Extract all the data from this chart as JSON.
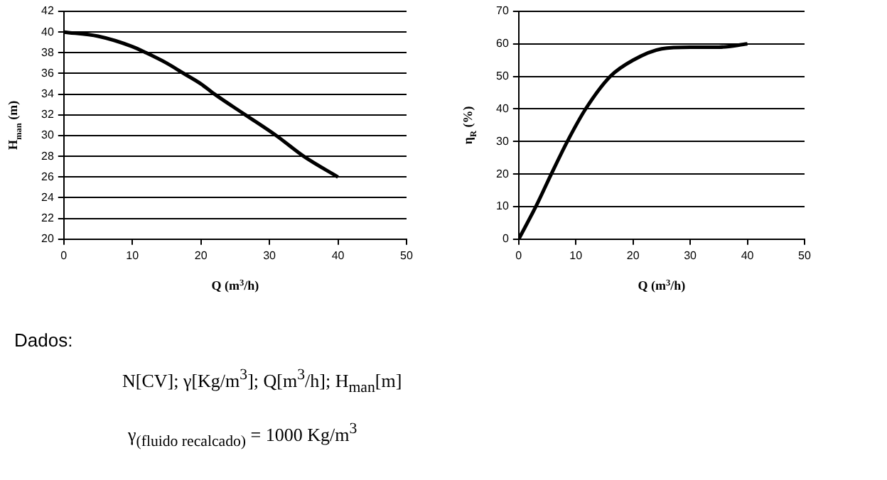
{
  "chart_data": [
    {
      "type": "line",
      "xlabel": "Q (m$^{3}$/h)",
      "ylabel": "H$_{man}$ (m)",
      "x": [
        0,
        5,
        10,
        12,
        15,
        17.5,
        20,
        22,
        26.5,
        31,
        35,
        40
      ],
      "series": [
        {
          "color": "#000000",
          "values": [
            40,
            39.6,
            38.6,
            38,
            37,
            36,
            35,
            34,
            32,
            30,
            28,
            26
          ]
        }
      ],
      "xlim": [
        0,
        50
      ],
      "xticks": [
        0,
        10,
        20,
        30,
        40,
        50
      ],
      "ylim": [
        20,
        42
      ],
      "yticks": [
        20,
        22,
        24,
        26,
        28,
        30,
        32,
        34,
        36,
        38,
        40,
        42
      ],
      "grid": "y",
      "legend": false,
      "marker": "none",
      "line_style": "solid"
    },
    {
      "type": "line",
      "xlabel": "Q (m$^{3}$/h)",
      "ylabel": "η$_{R}$ (%)",
      "x": [
        0,
        3,
        5.7,
        8.5,
        11.7,
        16,
        20,
        25,
        30,
        35,
        40
      ],
      "series": [
        {
          "color": "#000000",
          "values": [
            0,
            10,
            20,
            30,
            40,
            50,
            55,
            58.5,
            59,
            59,
            60
          ]
        }
      ],
      "xlim": [
        0,
        50
      ],
      "xticks": [
        0,
        10,
        20,
        30,
        40,
        50
      ],
      "ylim": [
        0,
        70
      ],
      "yticks": [
        0,
        10,
        20,
        30,
        40,
        50,
        60,
        70
      ],
      "grid": "y",
      "legend": false,
      "marker": "none",
      "line_style": "solid"
    },
    {
      "type": "other",
      "annotations": [
        "Dados:",
        "N[CV]; γ[Kg/m$^{3}$]; Q[m$^{3}$/h]; H$_{man}$[m]",
        "γ$_{(fluido recalcado)}$ = 1000 Kg/m$^{3}$"
      ]
    }
  ]
}
